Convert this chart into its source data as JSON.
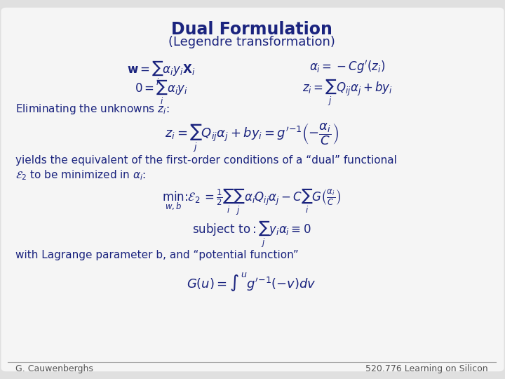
{
  "background_color": "#e0e0e0",
  "slide_bg": "#f5f5f5",
  "title": "Dual Formulation",
  "subtitle": "(Legendre transformation)",
  "title_color": "#1a237e",
  "text_color": "#1a237e",
  "footer_left": "G. Cauwenberghs",
  "footer_right": "520.776 Learning on Silicon",
  "eq1_left": "$\\mathbf{w} = \\sum_i \\alpha_i y_i \\mathbf{X}_i$",
  "eq1_right": "$\\alpha_i = -Cg'(z_i)$",
  "eq2_left": "$0 = \\sum_i \\alpha_i y_i$",
  "eq2_right": "$z_i = \\sum_j Q_{ij}\\alpha_j + by_i$",
  "elim_text": "Eliminating the unknowns $z_i$:",
  "eq3": "$z_i = \\sum_j Q_{ij}\\alpha_j + by_i = g'^{-1}\\left(-\\dfrac{\\alpha_i}{C}\\right)$",
  "yields_text": "yields the equivalent of the first-order conditions of a “dual” functional",
  "e2_text": "$\\mathcal{E}_2$ to be minimized in $\\alpha_i$:",
  "eq4": "$\\min_{w,b} : \\mathcal{E}_2 = \\frac{1}{2}\\sum_i\\sum_j \\alpha_i Q_{ij}\\alpha_j - C\\sum_i G\\left(\\frac{\\alpha_i}{C}\\right)$",
  "eq5": "$\\text{subject to}: \\sum_j y_i\\alpha_i \\equiv 0$",
  "lagrange_text": "with Lagrange parameter b, and “potential function”",
  "eq6": "$G(u) = \\int^u g'^{-1}(-v)dv$"
}
